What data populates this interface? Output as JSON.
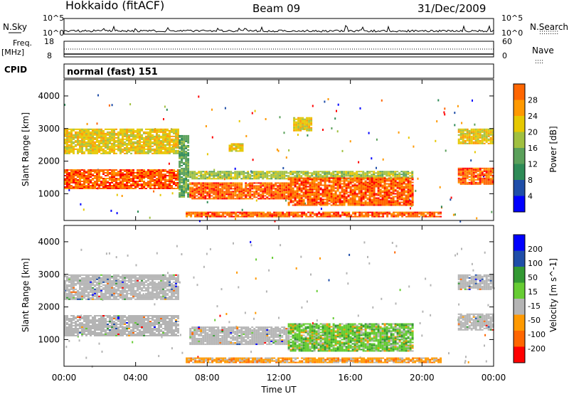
{
  "header": {
    "station": "Hokkaido (fitACF)",
    "beam": "Beam 09",
    "date": "31/Dec/2009"
  },
  "panel_labels": {
    "nsky": "N.Sky",
    "nsearch": "N.Search",
    "freq_line1": "Freq.",
    "freq_line2": "[MHz]",
    "nave": "Nave",
    "cpid": "CPID",
    "cpid_value": "normal (fast) 151",
    "nsky_ticks": [
      "10^5",
      "10^0"
    ],
    "nsearch_ticks": [
      "10^5",
      "10^0"
    ],
    "freq_ticks": [
      "18",
      "8"
    ],
    "nave_ticks": [
      "60",
      "0"
    ],
    "nsearch_legend": ":::::::::",
    "nave_legend": "::::"
  },
  "colors": {
    "power_scale": [
      "#0000ff",
      "#1f4ea8",
      "#2e8b57",
      "#5aa05a",
      "#a0c040",
      "#e6c800",
      "#ff9900",
      "#ff6600",
      "#ff0000"
    ],
    "velocity_scale": [
      "#ff0000",
      "#ff6600",
      "#ff9900",
      "#b4b4b4",
      "#66cc33",
      "#339933",
      "#1f4ea8",
      "#0000ff"
    ],
    "grey_scatter": "#b4b4b4"
  },
  "chart_data": [
    {
      "type": "heatmap",
      "name": "power",
      "ylabel": "Slant Range [km]",
      "yticks": [
        "1000",
        "2000",
        "3000",
        "4000"
      ],
      "ylim": [
        180,
        4500
      ],
      "xlim": [
        0,
        24
      ],
      "colorbar_label": "Power [dB]",
      "colorbar_ticks": [
        "4",
        "8",
        "12",
        "16",
        "20",
        "24",
        "28"
      ],
      "colorbar_range": [
        0,
        32
      ],
      "bands": [
        {
          "t0": 0.0,
          "t1": 6.4,
          "r0": 1150,
          "r1": 1750,
          "level": 28
        },
        {
          "t0": 0.0,
          "t1": 6.4,
          "r0": 2250,
          "r1": 3000,
          "level": 18
        },
        {
          "t0": 6.4,
          "t1": 6.9,
          "r0": 900,
          "r1": 2800,
          "level": 10
        },
        {
          "t0": 6.8,
          "t1": 21.0,
          "r0": 300,
          "r1": 450,
          "level": 28
        },
        {
          "t0": 7.0,
          "t1": 12.5,
          "r0": 850,
          "r1": 1350,
          "level": 28
        },
        {
          "t0": 7.0,
          "t1": 19.5,
          "r0": 1450,
          "r1": 1700,
          "level": 14
        },
        {
          "t0": 12.5,
          "t1": 19.5,
          "r0": 650,
          "r1": 1500,
          "level": 28
        },
        {
          "t0": 12.8,
          "t1": 13.8,
          "r0": 2950,
          "r1": 3350,
          "level": 18
        },
        {
          "t0": 9.2,
          "t1": 10.0,
          "r0": 2300,
          "r1": 2550,
          "level": 18
        },
        {
          "t0": 22.0,
          "t1": 24.0,
          "r0": 1300,
          "r1": 1800,
          "level": 28
        },
        {
          "t0": 22.0,
          "t1": 24.0,
          "r0": 2550,
          "r1": 3000,
          "level": 20
        }
      ]
    },
    {
      "type": "heatmap",
      "name": "velocity",
      "ylabel": "Slant Range [km]",
      "yticks": [
        "1000",
        "2000",
        "3000",
        "4000"
      ],
      "ylim": [
        180,
        4500
      ],
      "xlim": [
        0,
        24
      ],
      "xticks": [
        "00:00",
        "04:00",
        "08:00",
        "12:00",
        "16:00",
        "20:00",
        "00:00"
      ],
      "xlabel": "Time UT",
      "colorbar_label": "Velocity [m s^-1]",
      "colorbar_ticks": [
        "-200",
        "-100",
        "-50",
        "-15",
        "15",
        "50",
        "100",
        "200"
      ],
      "bands": [
        {
          "t0": 0.0,
          "t1": 6.4,
          "r0": 1100,
          "r1": 1750,
          "level": 0
        },
        {
          "t0": 0.0,
          "t1": 6.4,
          "r0": 2250,
          "r1": 3000,
          "level": 0
        },
        {
          "t0": 6.8,
          "t1": 21.0,
          "r0": 300,
          "r1": 450,
          "level": -50
        },
        {
          "t0": 7.0,
          "t1": 12.5,
          "r0": 850,
          "r1": 1400,
          "level": 0
        },
        {
          "t0": 12.5,
          "t1": 19.5,
          "r0": 650,
          "r1": 1500,
          "level": 30
        },
        {
          "t0": 22.0,
          "t1": 24.0,
          "r0": 1300,
          "r1": 1800,
          "level": 0
        },
        {
          "t0": 22.0,
          "t1": 24.0,
          "r0": 2550,
          "r1": 3000,
          "level": 0
        }
      ]
    }
  ]
}
